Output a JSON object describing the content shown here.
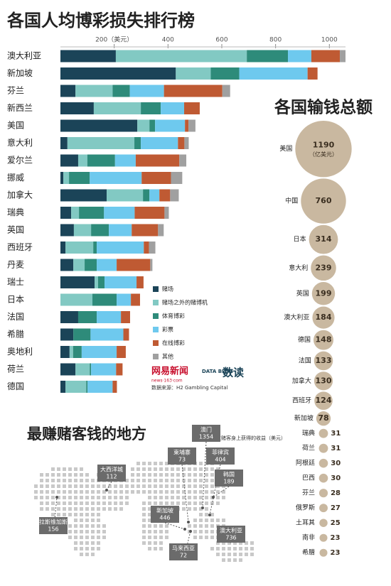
{
  "chart_data": [
    {
      "type": "stacked_bar",
      "title": "各国人均博彩损失排行榜",
      "categories": [
        "澳大利亚",
        "新加坡",
        "芬兰",
        "新西兰",
        "美国",
        "意大利",
        "爱尔兰",
        "挪威",
        "加拿大",
        "瑞典",
        "英国",
        "西班牙",
        "丹麦",
        "瑞士",
        "日本",
        "法国",
        "希腊",
        "奥地利",
        "荷兰",
        "德国"
      ],
      "series": [
        {
          "name": "赌场",
          "color": "#1b4458",
          "values": [
            206,
            429,
            56,
            124,
            286,
            26,
            66,
            11,
            172,
            40,
            50,
            19,
            48,
            127,
            0,
            66,
            48,
            34,
            56,
            19
          ]
        },
        {
          "name": "赌场之外的赌博机",
          "color": "#82c9c3",
          "values": [
            487,
            130,
            138,
            175,
            45,
            249,
            34,
            21,
            135,
            29,
            64,
            103,
            42,
            13,
            119,
            0,
            0,
            13,
            53,
            77
          ]
        },
        {
          "name": "体育博彩",
          "color": "#2e8b7a",
          "values": [
            153,
            106,
            64,
            74,
            21,
            24,
            103,
            77,
            24,
            93,
            66,
            13,
            45,
            24,
            90,
            69,
            64,
            32,
            5,
            5
          ]
        },
        {
          "name": "彩票",
          "color": "#6ec9ee",
          "values": [
            87,
            254,
            127,
            87,
            111,
            138,
            77,
            193,
            37,
            114,
            85,
            175,
            74,
            119,
            53,
            90,
            122,
            130,
            93,
            93
          ]
        },
        {
          "name": "在线博彩",
          "color": "#bf5a33",
          "values": [
            106,
            37,
            217,
            58,
            13,
            24,
            162,
            109,
            40,
            111,
            98,
            19,
            125,
            26,
            34,
            34,
            21,
            34,
            24,
            16
          ]
        },
        {
          "name": "其他",
          "color": "#a0a0a0",
          "values": [
            21,
            0,
            29,
            0,
            26,
            16,
            26,
            42,
            32,
            16,
            21,
            24,
            8,
            0,
            0,
            0,
            0,
            0,
            0,
            0
          ]
        }
      ],
      "xlim": [
        0,
        1060
      ],
      "xticks": [
        {
          "value": 200,
          "label": "200（美元）"
        },
        400,
        600,
        800,
        1000
      ],
      "brand": [
        "网易新闻",
        "news·163·com",
        "DATA BLOG",
        "数读"
      ],
      "source": "数据来源：H2 Gambling Capital"
    },
    {
      "type": "bubble",
      "title": "各国输钱总额",
      "color": "#c9b8a0",
      "unit_label": "（亿美元）",
      "categories": [
        "美国",
        "中国",
        "日本",
        "意大利",
        "英国",
        "澳大利亚",
        "德国",
        "法国",
        "加拿大",
        "西班牙",
        "新加坡",
        "瑞典",
        "荷兰",
        "阿根廷",
        "巴西",
        "芬兰",
        "俄罗斯",
        "土耳其",
        "南非",
        "希腊"
      ],
      "values": [
        1190,
        760,
        314,
        239,
        199,
        184,
        148,
        133,
        130,
        124,
        78,
        31,
        31,
        30,
        30,
        28,
        27,
        25,
        23,
        23
      ]
    },
    {
      "type": "map",
      "title": "最赚赌客钱的地方",
      "subtitle": "从每位赌客身上获得的收益（美元）",
      "categories": [
        "澳门",
        "柬埔寨",
        "菲律宾",
        "大西洋城",
        "拉斯维加斯",
        "新加坡",
        "韩国",
        "马来西亚",
        "澳大利亚"
      ],
      "values": [
        1354,
        73,
        404,
        112,
        156,
        446,
        189,
        72,
        736
      ]
    }
  ]
}
